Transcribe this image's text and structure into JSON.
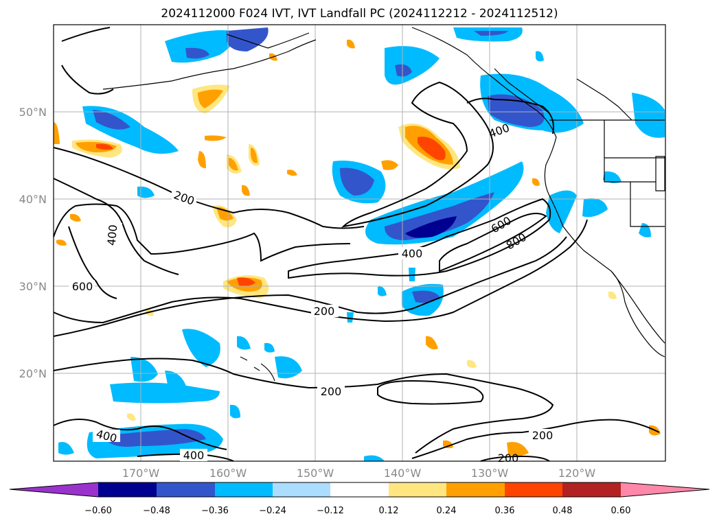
{
  "title": "2024112000 F024 IVT, IVT Landfall PC (2024112212 - 2024112512)",
  "lat_labels": [
    "50°N",
    "40°N",
    "30°N",
    "20°N"
  ],
  "lon_labels": [
    "170°W",
    "160°W",
    "150°W",
    "140°W",
    "130°W",
    "120°W"
  ],
  "contour_labels": [
    "200",
    "400",
    "600",
    "400",
    "200",
    "200",
    "200",
    "400",
    "400",
    "600",
    "800",
    "400",
    "200"
  ],
  "colorbar": {
    "ticks": [
      "−0.60",
      "−0.48",
      "−0.36",
      "−0.24",
      "−0.12",
      "0.12",
      "0.24",
      "0.36",
      "0.48",
      "0.60"
    ],
    "colors": [
      "#9933cc",
      "#000090",
      "#3355cc",
      "#00bbff",
      "#aaddff",
      "#ffffff",
      "#ffe680",
      "#ffa000",
      "#ff4400",
      "#b22222",
      "#ff88aa"
    ]
  }
}
